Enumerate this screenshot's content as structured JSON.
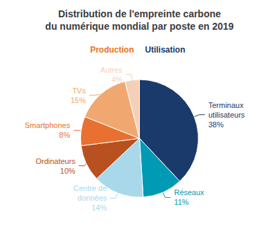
{
  "chart_data": {
    "type": "pie",
    "title": "Distribution de l'empreinte carbone\ndu numérique mondial par poste en 2019",
    "categories": [
      "Terminaux\nutilisateurs",
      "Réseaux",
      "Centre de\ndonnées",
      "Ordinateurs",
      "Smartphones",
      "TVs",
      "Autres"
    ],
    "values": [
      38,
      11,
      14,
      10,
      8,
      15,
      4
    ],
    "value_labels": [
      "38%",
      "11%",
      "14%",
      "10%",
      "8%",
      "15%",
      "4%"
    ],
    "colors": [
      "#1a3a6b",
      "#009ab5",
      "#a8d8ea",
      "#b85020",
      "#e87030",
      "#f0a870",
      "#f5d0b8"
    ],
    "annotations": [
      {
        "text": "Production",
        "color": "#f07020"
      },
      {
        "text": "Utilisation",
        "color": "#1a3a6b"
      }
    ]
  }
}
